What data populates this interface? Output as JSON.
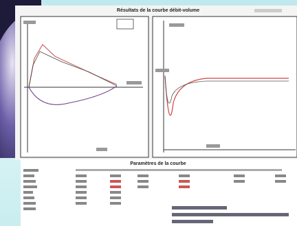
{
  "header": {
    "title": "Résultats de la courbe débit-volume"
  },
  "table": {
    "title": "Paramètres de la courbe"
  }
}
